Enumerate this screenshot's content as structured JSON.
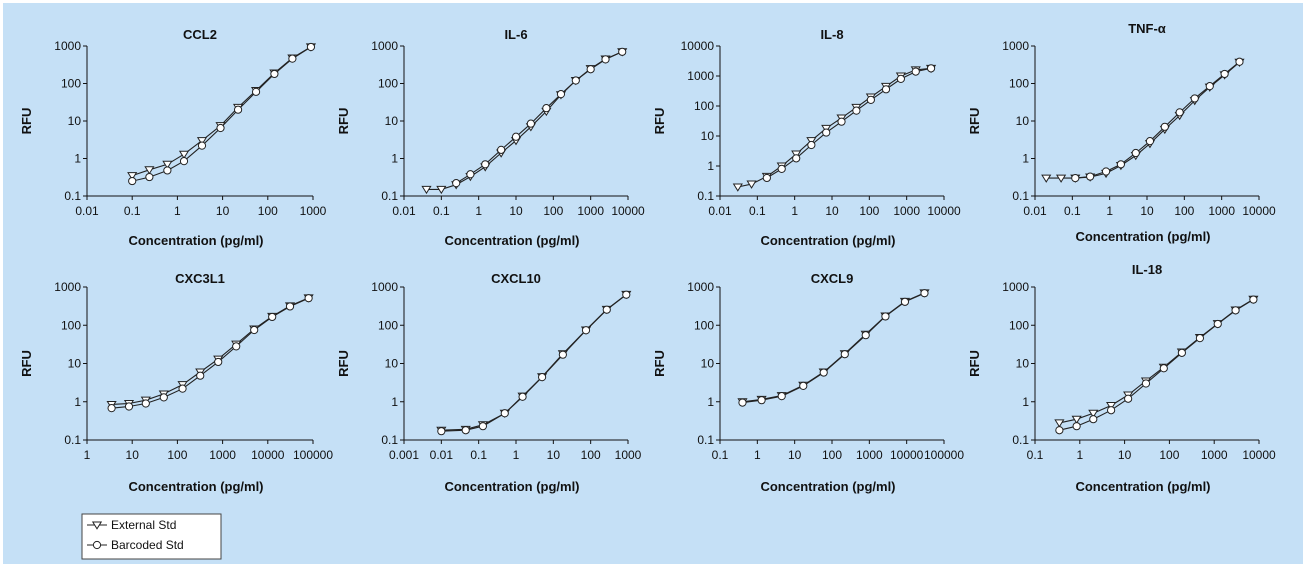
{
  "chart_data": [
    {
      "type": "line",
      "title": "CCL2",
      "xlabel": "Concentration (pg/ml)",
      "ylabel": "RFU",
      "xscale": "log",
      "yscale": "log",
      "xlim": [
        0.01,
        1000
      ],
      "ylim": [
        0.1,
        1000
      ],
      "xticks": [
        "0.01",
        "0.1",
        "1",
        "10",
        "100",
        "1000"
      ],
      "yticks": [
        "0.1",
        "1",
        "10",
        "100",
        "1000"
      ],
      "series": [
        {
          "name": "External Std",
          "marker": "triangle",
          "x": [
            0.1,
            0.24,
            0.6,
            1.4,
            3.5,
            9,
            22,
            55,
            140,
            350,
            900
          ],
          "y": [
            0.35,
            0.5,
            0.7,
            1.3,
            3,
            7.5,
            23,
            65,
            190,
            480,
            950
          ]
        },
        {
          "name": "Barcoded Std",
          "marker": "circle",
          "x": [
            0.1,
            0.24,
            0.6,
            1.4,
            3.5,
            9,
            22,
            55,
            140,
            350,
            900
          ],
          "y": [
            0.25,
            0.32,
            0.48,
            0.85,
            2.2,
            6.5,
            20,
            60,
            180,
            460,
            940
          ]
        }
      ]
    },
    {
      "type": "line",
      "title": "IL-6",
      "xlabel": "Concentration (pg/ml)",
      "ylabel": "RFU",
      "xscale": "log",
      "yscale": "log",
      "xlim": [
        0.01,
        10000
      ],
      "ylim": [
        0.1,
        1000
      ],
      "xticks": [
        "0.01",
        "0.1",
        "1",
        "10",
        "100",
        "1000",
        "10000"
      ],
      "yticks": [
        "0.1",
        "1",
        "10",
        "100",
        "1000"
      ],
      "series": [
        {
          "name": "External Std",
          "marker": "triangle",
          "x": [
            0.04,
            0.1,
            0.25,
            0.6,
            1.5,
            4,
            10,
            25,
            65,
            160,
            400,
            1000,
            2500,
            7000
          ],
          "y": [
            0.15,
            0.15,
            0.2,
            0.33,
            0.6,
            1.4,
            3,
            7,
            18,
            50,
            120,
            250,
            450,
            700
          ]
        },
        {
          "name": "Barcoded Std",
          "marker": "circle",
          "x": [
            0.25,
            0.6,
            1.5,
            4,
            10,
            25,
            65,
            160,
            400,
            1000,
            2500,
            7000
          ],
          "y": [
            0.22,
            0.38,
            0.7,
            1.7,
            3.8,
            8.5,
            22,
            52,
            120,
            240,
            440,
            700
          ]
        }
      ]
    },
    {
      "type": "line",
      "title": "IL-8",
      "xlabel": "Concentration (pg/ml)",
      "ylabel": "RFU",
      "xscale": "log",
      "yscale": "log",
      "xlim": [
        0.01,
        10000
      ],
      "ylim": [
        0.1,
        10000
      ],
      "xticks": [
        "0.01",
        "0.1",
        "1",
        "10",
        "100",
        "1000",
        "10000"
      ],
      "yticks": [
        "0.1",
        "1",
        "10",
        "100",
        "1000",
        "10000"
      ],
      "series": [
        {
          "name": "External Std",
          "marker": "triangle",
          "x": [
            0.03,
            0.07,
            0.18,
            0.45,
            1.1,
            2.8,
            7,
            18,
            45,
            110,
            280,
            700,
            1750,
            4500
          ],
          "y": [
            0.2,
            0.25,
            0.45,
            1,
            2.5,
            7,
            18,
            40,
            90,
            200,
            450,
            1000,
            1600,
            1800
          ]
        },
        {
          "name": "Barcoded Std",
          "marker": "circle",
          "x": [
            0.18,
            0.45,
            1.1,
            2.8,
            7,
            18,
            45,
            110,
            280,
            700,
            1750,
            4500
          ],
          "y": [
            0.4,
            0.8,
            1.8,
            5,
            13,
            30,
            70,
            160,
            360,
            800,
            1400,
            1800
          ]
        }
      ]
    },
    {
      "type": "line",
      "title": "TNF-α",
      "xlabel": "Concentration (pg/ml)",
      "ylabel": "RFU",
      "xscale": "log",
      "yscale": "log",
      "xlim": [
        0.01,
        10000
      ],
      "ylim": [
        0.1,
        1000
      ],
      "xticks": [
        "0.01",
        "0.1",
        "1",
        "10",
        "100",
        "1000",
        "10000"
      ],
      "yticks": [
        "0.1",
        "1",
        "10",
        "100",
        "1000"
      ],
      "series": [
        {
          "name": "External Std",
          "marker": "triangle",
          "x": [
            0.02,
            0.05,
            0.12,
            0.3,
            0.8,
            2,
            5,
            12,
            30,
            75,
            190,
            480,
            1200,
            3000
          ],
          "y": [
            0.3,
            0.3,
            0.3,
            0.32,
            0.4,
            0.65,
            1.2,
            2.5,
            6,
            14,
            35,
            80,
            170,
            370
          ]
        },
        {
          "name": "Barcoded Std",
          "marker": "circle",
          "x": [
            0.12,
            0.3,
            0.8,
            2,
            5,
            12,
            30,
            75,
            190,
            480,
            1200,
            3000
          ],
          "y": [
            0.3,
            0.33,
            0.45,
            0.7,
            1.4,
            2.9,
            7,
            17,
            40,
            85,
            180,
            380
          ]
        }
      ]
    },
    {
      "type": "line",
      "title": "CXC3L1",
      "xlabel": "Concentration (pg/ml)",
      "ylabel": "RFU",
      "xscale": "log",
      "yscale": "log",
      "xlim": [
        1,
        100000
      ],
      "ylim": [
        0.1,
        1000
      ],
      "xticks": [
        "1",
        "10",
        "100",
        "1000",
        "10000",
        "100000"
      ],
      "yticks": [
        "0.1",
        "1",
        "10",
        "100",
        "1000"
      ],
      "series": [
        {
          "name": "External Std",
          "marker": "triangle",
          "x": [
            3.5,
            8.5,
            20,
            50,
            130,
            320,
            800,
            2000,
            5000,
            12500,
            31000,
            80000
          ],
          "y": [
            0.85,
            0.9,
            1.1,
            1.6,
            2.8,
            6,
            13,
            32,
            80,
            170,
            320,
            520
          ]
        },
        {
          "name": "Barcoded Std",
          "marker": "circle",
          "x": [
            3.5,
            8.5,
            20,
            50,
            130,
            320,
            800,
            2000,
            5000,
            12500,
            31000,
            80000
          ],
          "y": [
            0.68,
            0.75,
            0.9,
            1.3,
            2.2,
            4.8,
            11,
            28,
            75,
            165,
            310,
            510
          ]
        }
      ]
    },
    {
      "type": "line",
      "title": "CXCL10",
      "xlabel": "Concentration (pg/ml)",
      "ylabel": "RFU",
      "xscale": "log",
      "yscale": "log",
      "xlim": [
        0.001,
        1000
      ],
      "ylim": [
        0.1,
        1000
      ],
      "xticks": [
        "0.001",
        "0.01",
        "0.1",
        "1",
        "10",
        "100",
        "1000"
      ],
      "yticks": [
        "0.1",
        "1",
        "10",
        "100",
        "1000"
      ],
      "series": [
        {
          "name": "External Std",
          "marker": "triangle",
          "x": [
            0.01,
            0.045,
            0.13,
            0.5,
            1.5,
            5,
            18,
            75,
            270,
            900
          ],
          "y": [
            0.18,
            0.19,
            0.25,
            0.5,
            1.4,
            4.5,
            18,
            75,
            260,
            640
          ]
        },
        {
          "name": "Barcoded Std",
          "marker": "circle",
          "x": [
            0.01,
            0.045,
            0.13,
            0.5,
            1.5,
            5,
            18,
            75,
            270,
            900
          ],
          "y": [
            0.17,
            0.18,
            0.23,
            0.5,
            1.35,
            4.4,
            17,
            74,
            255,
            630
          ]
        }
      ]
    },
    {
      "type": "line",
      "title": "CXCL9",
      "xlabel": "Concentration (pg/ml)",
      "ylabel": "RFU",
      "xscale": "log",
      "yscale": "log",
      "xlim": [
        0.1,
        100000
      ],
      "ylim": [
        0.1,
        1000
      ],
      "xticks": [
        "0.1",
        "1",
        "10",
        "100",
        "1000",
        "10000",
        "100000"
      ],
      "yticks": [
        "0.1",
        "1",
        "10",
        "100",
        "1000"
      ],
      "series": [
        {
          "name": "External Std",
          "marker": "triangle",
          "x": [
            0.4,
            1.3,
            4.5,
            17,
            60,
            220,
            800,
            2700,
            9000,
            30000
          ],
          "y": [
            1,
            1.15,
            1.45,
            2.7,
            6,
            18,
            58,
            175,
            420,
            700
          ]
        },
        {
          "name": "Barcoded Std",
          "marker": "circle",
          "x": [
            0.4,
            1.3,
            4.5,
            17,
            60,
            220,
            800,
            2700,
            9000,
            30000
          ],
          "y": [
            0.95,
            1.1,
            1.4,
            2.6,
            5.8,
            17.5,
            55,
            170,
            410,
            690
          ]
        }
      ]
    },
    {
      "type": "line",
      "title": "IL-18",
      "xlabel": "Concentration (pg/ml)",
      "ylabel": "RFU",
      "xscale": "log",
      "yscale": "log",
      "xlim": [
        0.1,
        10000
      ],
      "ylim": [
        0.1,
        1000
      ],
      "xticks": [
        "0.1",
        "1",
        "10",
        "100",
        "1000",
        "10000"
      ],
      "yticks": [
        "0.1",
        "1",
        "10",
        "100",
        "1000"
      ],
      "series": [
        {
          "name": "External Std",
          "marker": "triangle",
          "x": [
            0.35,
            0.85,
            2,
            5,
            12,
            30,
            75,
            190,
            480,
            1200,
            3000,
            7500
          ],
          "y": [
            0.28,
            0.35,
            0.5,
            0.8,
            1.5,
            3.5,
            8,
            20,
            48,
            110,
            250,
            480
          ]
        },
        {
          "name": "Barcoded Std",
          "marker": "circle",
          "x": [
            0.35,
            0.85,
            2,
            5,
            12,
            30,
            75,
            190,
            480,
            1200,
            3000,
            7500
          ],
          "y": [
            0.18,
            0.23,
            0.35,
            0.6,
            1.2,
            3,
            7.5,
            19,
            46,
            108,
            245,
            470
          ]
        }
      ]
    }
  ],
  "legend": {
    "entries": [
      {
        "label": "External Std",
        "marker": "triangle"
      },
      {
        "label": "Barcoded Std",
        "marker": "circle"
      }
    ],
    "placement": "bottom-left"
  },
  "colors": {
    "background": "#c5e0f6",
    "line": "#222222",
    "marker_fill": "#ffffff",
    "legend_bg": "#ffffff"
  }
}
